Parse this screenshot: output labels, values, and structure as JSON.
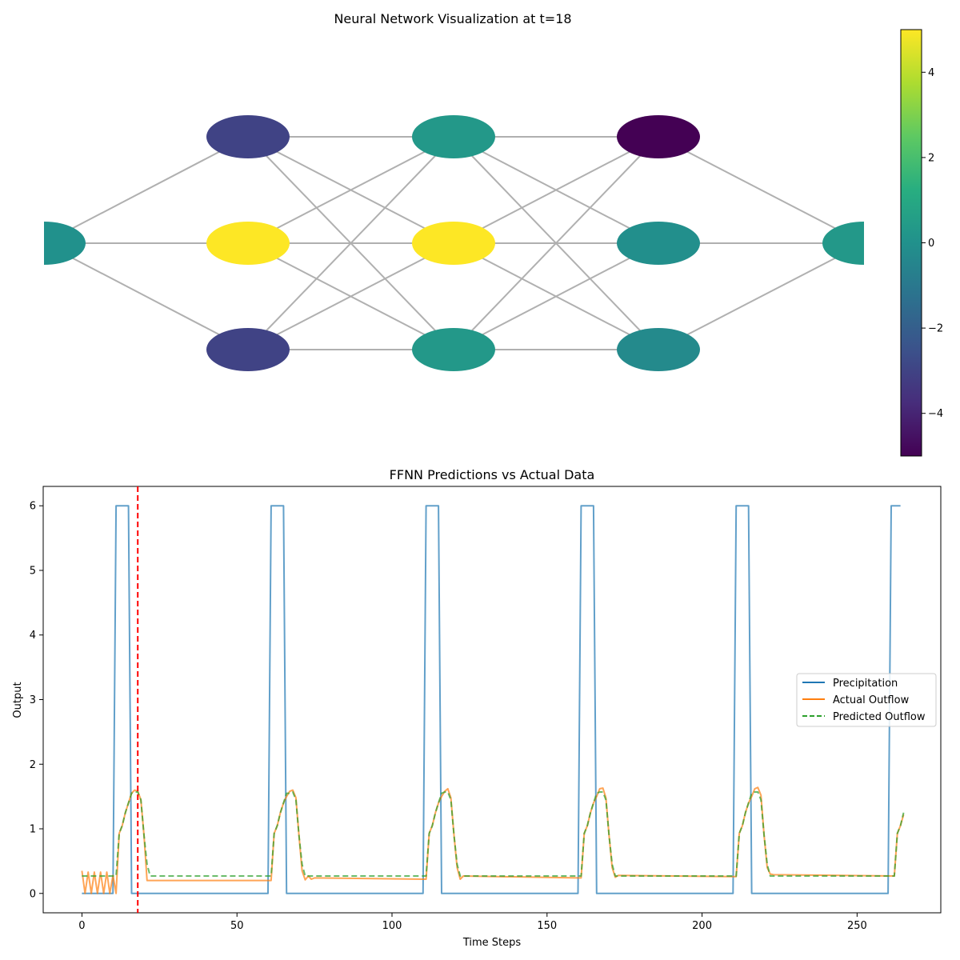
{
  "chart_data": [
    {
      "type": "network",
      "title": "Neural Network Visualization at t=18",
      "layers": [
        [
          0.0
        ],
        [
          -3.0,
          5.0,
          -3.0
        ],
        [
          0.3,
          5.0,
          0.3
        ],
        [
          -5.0,
          -0.1,
          -0.3
        ],
        [
          0.3
        ]
      ],
      "edges": "fully-connected between adjacent layers",
      "colormap": "viridis",
      "colorbar": {
        "range": [
          -5,
          5
        ],
        "ticks": [
          -4,
          -2,
          0,
          2,
          4
        ],
        "tick_labels": [
          "−4",
          "−2",
          "0",
          "2",
          "4"
        ]
      }
    },
    {
      "type": "line",
      "title": "FFNN Predictions vs Actual Data",
      "xlabel": "Time Steps",
      "ylabel": "Output",
      "xlim": [
        -12.5,
        277
      ],
      "ylim": [
        -0.3,
        6.3
      ],
      "xticks": [
        0,
        50,
        100,
        150,
        200,
        250
      ],
      "yticks": [
        0,
        1,
        2,
        3,
        4,
        5,
        6
      ],
      "current_step_marker": 18,
      "legend_position": "center-right",
      "series": [
        {
          "name": "Precipitation",
          "color": "#1f77b4",
          "style": "solid",
          "points": [
            [
              0,
              0
            ],
            [
              10,
              0
            ],
            [
              11,
              6
            ],
            [
              15,
              6
            ],
            [
              16,
              0
            ],
            [
              60,
              0
            ],
            [
              61,
              6
            ],
            [
              65,
              6
            ],
            [
              66,
              0
            ],
            [
              110,
              0
            ],
            [
              111,
              6
            ],
            [
              115,
              6
            ],
            [
              116,
              0
            ],
            [
              160,
              0
            ],
            [
              161,
              6
            ],
            [
              165,
              6
            ],
            [
              166,
              0
            ],
            [
              210,
              0
            ],
            [
              211,
              6
            ],
            [
              215,
              6
            ],
            [
              216,
              0
            ],
            [
              260,
              0
            ],
            [
              261,
              6
            ],
            [
              264,
              6
            ]
          ]
        },
        {
          "name": "Actual Outflow",
          "color": "#ff7f0e",
          "style": "solid",
          "points": [
            [
              0,
              0.35
            ],
            [
              1,
              0
            ],
            [
              2,
              0.33
            ],
            [
              3,
              0
            ],
            [
              4,
              0.33
            ],
            [
              5,
              0
            ],
            [
              6,
              0.33
            ],
            [
              7,
              0
            ],
            [
              8,
              0.33
            ],
            [
              9,
              0
            ],
            [
              10,
              0.28
            ],
            [
              11,
              0
            ],
            [
              12,
              0.93
            ],
            [
              13,
              1.05
            ],
            [
              14,
              1.25
            ],
            [
              15,
              1.4
            ],
            [
              16,
              1.55
            ],
            [
              17,
              1.6
            ],
            [
              18,
              1.58
            ],
            [
              19,
              1.45
            ],
            [
              20,
              0.9
            ],
            [
              21,
              0.2
            ],
            [
              60,
              0.2
            ],
            [
              61,
              0.2
            ],
            [
              62,
              0.93
            ],
            [
              63,
              1.05
            ],
            [
              64,
              1.25
            ],
            [
              65,
              1.4
            ],
            [
              66,
              1.5
            ],
            [
              67,
              1.58
            ],
            [
              68,
              1.6
            ],
            [
              69,
              1.48
            ],
            [
              70,
              0.9
            ],
            [
              71,
              0.35
            ],
            [
              72,
              0.21
            ],
            [
              73,
              0.27
            ],
            [
              74,
              0.22
            ],
            [
              75,
              0.24
            ],
            [
              110,
              0.22
            ],
            [
              111,
              0.22
            ],
            [
              112,
              0.93
            ],
            [
              113,
              1.05
            ],
            [
              114,
              1.25
            ],
            [
              115,
              1.4
            ],
            [
              116,
              1.5
            ],
            [
              117,
              1.58
            ],
            [
              118,
              1.62
            ],
            [
              119,
              1.48
            ],
            [
              120,
              0.9
            ],
            [
              121,
              0.4
            ],
            [
              122,
              0.22
            ],
            [
              123,
              0.27
            ],
            [
              160,
              0.24
            ],
            [
              161,
              0.24
            ],
            [
              162,
              0.93
            ],
            [
              163,
              1.05
            ],
            [
              164,
              1.25
            ],
            [
              165,
              1.4
            ],
            [
              166,
              1.5
            ],
            [
              167,
              1.62
            ],
            [
              168,
              1.63
            ],
            [
              169,
              1.48
            ],
            [
              170,
              0.9
            ],
            [
              171,
              0.4
            ],
            [
              172,
              0.25
            ],
            [
              173,
              0.28
            ],
            [
              210,
              0.26
            ],
            [
              211,
              0.26
            ],
            [
              212,
              0.93
            ],
            [
              213,
              1.05
            ],
            [
              214,
              1.25
            ],
            [
              215,
              1.4
            ],
            [
              216,
              1.5
            ],
            [
              217,
              1.62
            ],
            [
              218,
              1.64
            ],
            [
              219,
              1.52
            ],
            [
              220,
              0.9
            ],
            [
              221,
              0.4
            ],
            [
              222,
              0.3
            ],
            [
              223,
              0.29
            ],
            [
              262,
              0.27
            ],
            [
              263,
              0.93
            ],
            [
              264,
              1.05
            ],
            [
              265,
              1.22
            ]
          ]
        },
        {
          "name": "Predicted Outflow",
          "color": "#2ca02c",
          "style": "dashed",
          "points": [
            [
              0,
              0.27
            ],
            [
              11,
              0.27
            ],
            [
              12,
              0.93
            ],
            [
              13,
              1.05
            ],
            [
              14,
              1.25
            ],
            [
              15,
              1.4
            ],
            [
              16,
              1.55
            ],
            [
              17,
              1.57
            ],
            [
              18,
              1.57
            ],
            [
              19,
              1.45
            ],
            [
              20,
              0.9
            ],
            [
              21,
              0.45
            ],
            [
              22,
              0.27
            ],
            [
              60,
              0.27
            ],
            [
              61,
              0.27
            ],
            [
              62,
              0.93
            ],
            [
              63,
              1.05
            ],
            [
              64,
              1.25
            ],
            [
              65,
              1.4
            ],
            [
              66,
              1.55
            ],
            [
              67,
              1.55
            ],
            [
              68,
              1.57
            ],
            [
              69,
              1.45
            ],
            [
              70,
              0.9
            ],
            [
              71,
              0.45
            ],
            [
              72,
              0.27
            ],
            [
              111,
              0.27
            ],
            [
              112,
              0.93
            ],
            [
              113,
              1.05
            ],
            [
              114,
              1.25
            ],
            [
              115,
              1.4
            ],
            [
              116,
              1.55
            ],
            [
              117,
              1.57
            ],
            [
              118,
              1.57
            ],
            [
              119,
              1.45
            ],
            [
              120,
              0.9
            ],
            [
              121,
              0.45
            ],
            [
              122,
              0.27
            ],
            [
              161,
              0.27
            ],
            [
              162,
              0.93
            ],
            [
              163,
              1.05
            ],
            [
              164,
              1.25
            ],
            [
              165,
              1.4
            ],
            [
              166,
              1.55
            ],
            [
              167,
              1.57
            ],
            [
              168,
              1.57
            ],
            [
              169,
              1.45
            ],
            [
              170,
              0.9
            ],
            [
              171,
              0.45
            ],
            [
              172,
              0.27
            ],
            [
              211,
              0.27
            ],
            [
              212,
              0.93
            ],
            [
              213,
              1.05
            ],
            [
              214,
              1.25
            ],
            [
              215,
              1.4
            ],
            [
              216,
              1.55
            ],
            [
              217,
              1.57
            ],
            [
              218,
              1.57
            ],
            [
              219,
              1.45
            ],
            [
              220,
              0.9
            ],
            [
              221,
              0.45
            ],
            [
              222,
              0.27
            ],
            [
              262,
              0.27
            ],
            [
              263,
              0.93
            ],
            [
              264,
              1.05
            ],
            [
              265,
              1.25
            ]
          ]
        }
      ]
    }
  ]
}
